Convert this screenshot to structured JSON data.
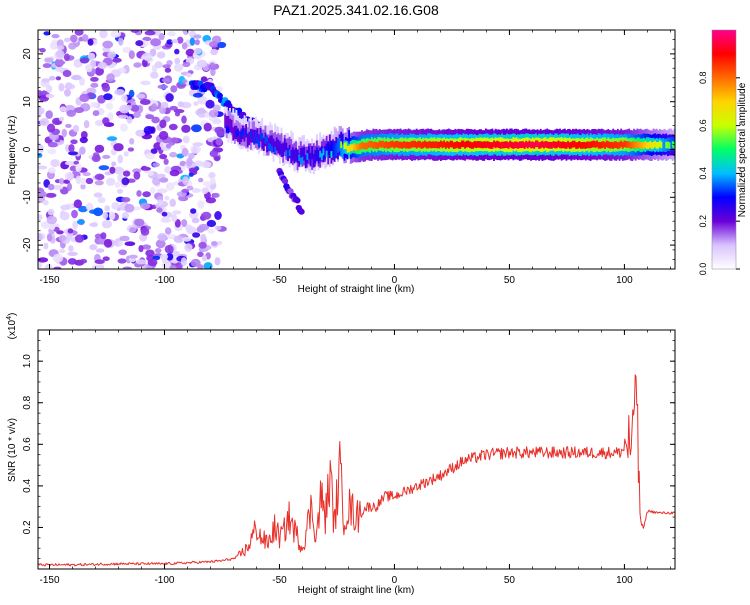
{
  "title": "PAZ1.2025.341.02.16.G08",
  "chart_data": [
    {
      "type": "heatmap",
      "title": "PAZ1.2025.341.02.16.G08",
      "xlabel": "Height of straight line (km)",
      "ylabel": "Frequency (Hz)",
      "xlim": [
        -155,
        122
      ],
      "ylim": [
        -25,
        25
      ],
      "xticks": [
        -150,
        -100,
        -50,
        0,
        50,
        100
      ],
      "yticks": [
        -20,
        -10,
        0,
        10,
        20
      ],
      "colorbar": {
        "label": "Normalized spectral amplitude",
        "range": [
          0,
          1
        ],
        "ticks": [
          "0.0",
          "0.2",
          "0.4",
          "0.6",
          "0.8"
        ],
        "tick_values": [
          0.0,
          0.2,
          0.4,
          0.6,
          0.8
        ],
        "colors": [
          "#ffffff",
          "#d9c3ff",
          "#6a00d8",
          "#0000ff",
          "#00bfff",
          "#00ff66",
          "#c8ff00",
          "#ffd400",
          "#ff6a00",
          "#ff0000",
          "#ff0090"
        ]
      },
      "features": {
        "noise_region": {
          "x": [
            -155,
            -75
          ],
          "y": [
            -25,
            25
          ],
          "amplitude": 0.15
        },
        "high_branch": [
          [
            -88,
            13.5
          ],
          [
            -80,
            13
          ],
          [
            -72,
            9
          ],
          [
            -60,
            5
          ],
          [
            -48,
            0
          ],
          [
            -42,
            -2
          ]
        ],
        "low_branch": [
          [
            -50,
            -5
          ],
          [
            -45,
            -9
          ],
          [
            -40,
            -13
          ]
        ],
        "main_ridge": [
          [
            -74,
            5
          ],
          [
            -68,
            3
          ],
          [
            -60,
            2
          ],
          [
            -50,
            0
          ],
          [
            -42,
            -2
          ],
          [
            -35,
            -2
          ],
          [
            -25,
            0
          ],
          [
            -10,
            1
          ],
          [
            0,
            1
          ],
          [
            20,
            1
          ],
          [
            40,
            1
          ],
          [
            60,
            1
          ],
          [
            80,
            1
          ],
          [
            100,
            1
          ],
          [
            122,
            1
          ]
        ],
        "ridge_amplitude": [
          [
            -74,
            0.3
          ],
          [
            -50,
            0.35
          ],
          [
            -30,
            0.4
          ],
          [
            -15,
            0.8
          ],
          [
            0,
            0.85
          ],
          [
            30,
            0.9
          ],
          [
            60,
            0.95
          ],
          [
            100,
            0.85
          ],
          [
            122,
            0.5
          ]
        ]
      }
    },
    {
      "type": "line",
      "xlabel": "Height of straight line (km)",
      "ylabel": "SNR (10 * v/v)",
      "scale_label": "(x10",
      "scale_exponent": "4",
      "xlim": [
        -155,
        122
      ],
      "ylim": [
        0,
        1.15
      ],
      "xticks": [
        -150,
        -100,
        -50,
        0,
        50,
        100
      ],
      "yticks": [
        0.2,
        0.4,
        0.6,
        0.8,
        1.0
      ],
      "ytick_labels": [
        "0.2",
        "0.4",
        "0.6",
        "0.8",
        "1.0"
      ],
      "line_color": "#e8302a",
      "series": [
        {
          "name": "SNR",
          "x": [
            -155,
            -140,
            -120,
            -100,
            -90,
            -80,
            -75,
            -70,
            -68,
            -64,
            -60,
            -58,
            -55,
            -52,
            -50,
            -48,
            -46,
            -44,
            -42,
            -40,
            -38,
            -36,
            -34,
            -32,
            -30,
            -28,
            -26,
            -24,
            -22,
            -20,
            -16,
            -12,
            -8,
            -4,
            0,
            10,
            20,
            30,
            40,
            50,
            60,
            70,
            80,
            90,
            98,
            100,
            102,
            103,
            104,
            105,
            106,
            107,
            108,
            110,
            115,
            122
          ],
          "y": [
            0.02,
            0.02,
            0.025,
            0.025,
            0.03,
            0.035,
            0.04,
            0.05,
            0.06,
            0.1,
            0.2,
            0.15,
            0.12,
            0.2,
            0.15,
            0.18,
            0.25,
            0.2,
            0.15,
            0.1,
            0.2,
            0.3,
            0.15,
            0.35,
            0.25,
            0.45,
            0.2,
            0.5,
            0.25,
            0.3,
            0.25,
            0.3,
            0.3,
            0.35,
            0.35,
            0.4,
            0.45,
            0.52,
            0.55,
            0.56,
            0.56,
            0.56,
            0.56,
            0.56,
            0.56,
            0.58,
            0.62,
            0.55,
            0.65,
            1.1,
            0.5,
            0.25,
            0.18,
            0.28,
            0.27,
            0.27
          ]
        }
      ]
    }
  ]
}
